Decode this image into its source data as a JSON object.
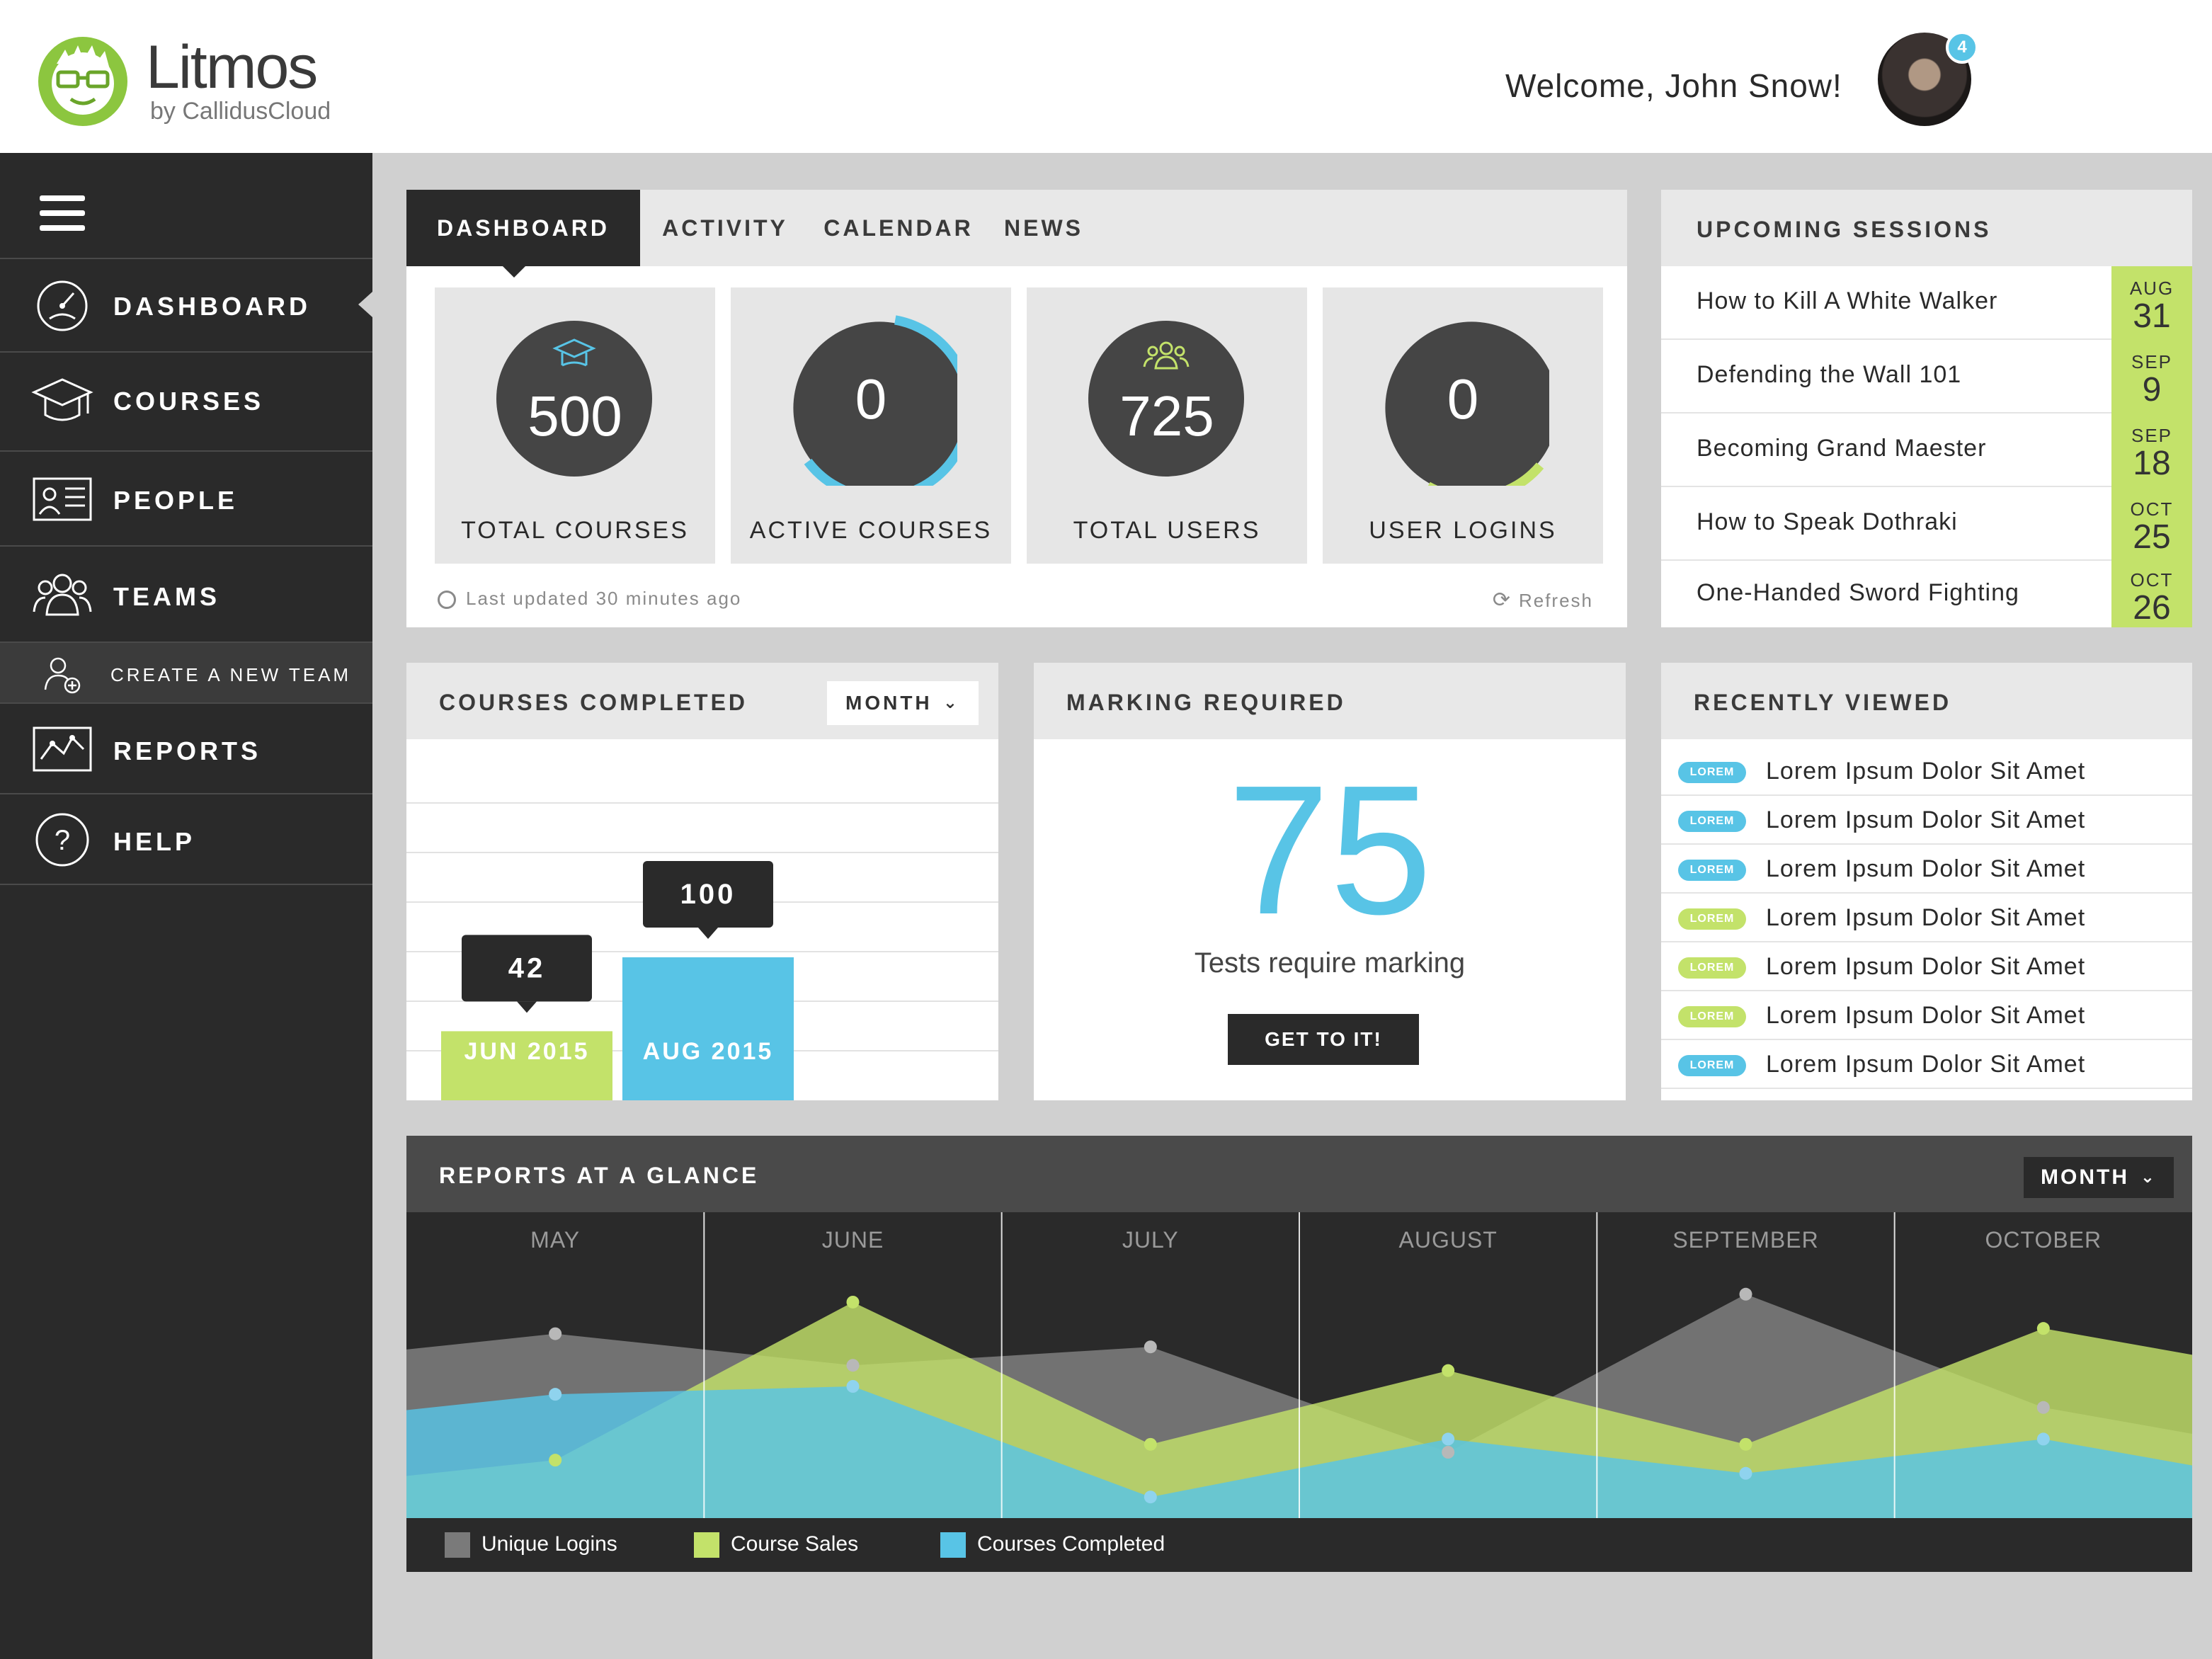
{
  "brand": {
    "name": "Litmos",
    "sub": "by CallidusCloud"
  },
  "header": {
    "welcome": "Welcome, John Snow!",
    "badge": "4"
  },
  "sidebar": {
    "items": [
      {
        "label": "DASHBOARD",
        "icon": "speedometer-icon"
      },
      {
        "label": "COURSES",
        "icon": "graduation-cap-icon"
      },
      {
        "label": "PEOPLE",
        "icon": "id-card-icon"
      },
      {
        "label": "TEAMS",
        "icon": "team-icon"
      },
      {
        "label": "CREATE A NEW TEAM",
        "icon": "add-user-icon"
      },
      {
        "label": "REPORTS",
        "icon": "line-chart-icon"
      },
      {
        "label": "HELP",
        "icon": "help-icon"
      }
    ]
  },
  "dashboard": {
    "tabs": [
      "DASHBOARD",
      "ACTIVITY",
      "CALENDAR",
      "NEWS"
    ],
    "stats": [
      {
        "value": "500",
        "caption": "TOTAL COURSES",
        "progress": 0
      },
      {
        "value": "0",
        "caption": "ACTIVE COURSES",
        "progress": 0.62
      },
      {
        "value": "725",
        "caption": "TOTAL USERS",
        "progress": 0
      },
      {
        "value": "0",
        "caption": "USER LOGINS",
        "progress": 0.22
      }
    ],
    "updated": "Last updated 30 minutes ago",
    "refresh": "Refresh"
  },
  "upcoming": {
    "title": "UPCOMING SESSIONS",
    "sessions": [
      {
        "title": "How to Kill A White Walker",
        "month": "AUG",
        "day": "31"
      },
      {
        "title": "Defending the Wall 101",
        "month": "SEP",
        "day": "9"
      },
      {
        "title": "Becoming Grand Maester",
        "month": "SEP",
        "day": "18"
      },
      {
        "title": "How to Speak Dothraki",
        "month": "OCT",
        "day": "25"
      },
      {
        "title": "One-Handed Sword Fighting",
        "month": "OCT",
        "day": "26"
      }
    ]
  },
  "completed": {
    "title": "COURSES COMPLETED",
    "period": "MONTH"
  },
  "marking": {
    "title": "MARKING REQUIRED",
    "count": "75",
    "text": "Tests require marking",
    "button": "GET TO IT!"
  },
  "recent": {
    "title": "RECENTLY VIEWED",
    "items": [
      {
        "tag": "LOREM",
        "color": "#58c4e6",
        "text": "Lorem Ipsum Dolor Sit Amet"
      },
      {
        "tag": "LOREM",
        "color": "#58c4e6",
        "text": "Lorem Ipsum Dolor Sit Amet"
      },
      {
        "tag": "LOREM",
        "color": "#58c4e6",
        "text": "Lorem Ipsum Dolor Sit Amet"
      },
      {
        "tag": "LOREM",
        "color": "#c3e26a",
        "text": "Lorem Ipsum Dolor Sit Amet"
      },
      {
        "tag": "LOREM",
        "color": "#c3e26a",
        "text": "Lorem Ipsum Dolor Sit Amet"
      },
      {
        "tag": "LOREM",
        "color": "#c3e26a",
        "text": "Lorem Ipsum Dolor Sit Amet"
      },
      {
        "tag": "LOREM",
        "color": "#58c4e6",
        "text": "Lorem Ipsum Dolor Sit Amet"
      }
    ]
  },
  "reports": {
    "title": "REPORTS AT A GLANCE",
    "period": "MONTH"
  },
  "chart_data": [
    {
      "type": "bar",
      "categories": [
        "JUN 2015",
        "AUG 2015"
      ],
      "values": [
        42,
        100
      ],
      "colors": [
        "#c3e26a",
        "#58c4e6"
      ],
      "ylim": [
        0,
        120
      ],
      "grid": true
    },
    {
      "type": "area",
      "categories": [
        "MAY",
        "JUNE",
        "JULY",
        "AUGUST",
        "SEPTEMBER",
        "OCTOBER"
      ],
      "ylim": [
        0,
        100
      ],
      "series": [
        {
          "name": "Unique Logins",
          "color": "#7a7a7a",
          "values": [
            70,
            58,
            65,
            25,
            85,
            42
          ]
        },
        {
          "name": "Course Sales",
          "color": "#c3e26a",
          "values": [
            22,
            82,
            28,
            56,
            28,
            72
          ]
        },
        {
          "name": "Courses Completed",
          "color": "#58c4e6",
          "values": [
            47,
            50,
            8,
            30,
            17,
            30
          ]
        }
      ]
    }
  ]
}
